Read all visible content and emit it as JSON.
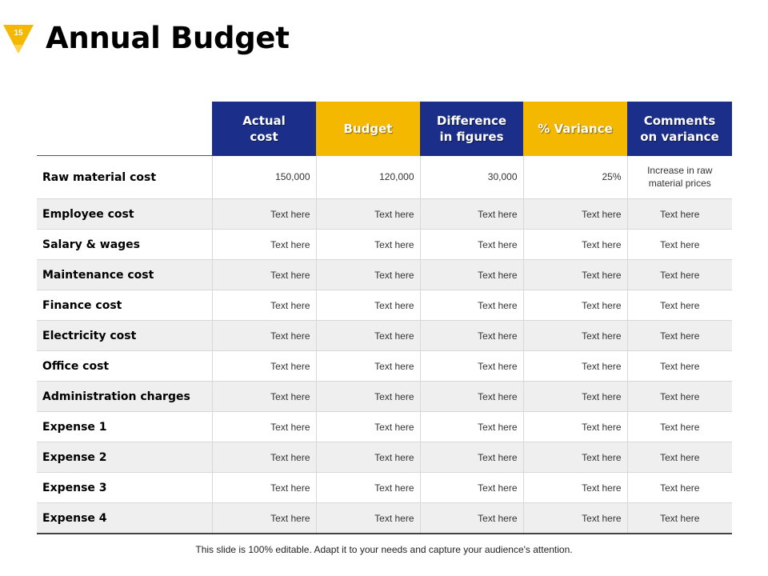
{
  "slide": {
    "number": "15",
    "title": "Annual Budget",
    "footer": "This slide is 100% editable. Adapt it to your needs and capture your audience's attention.",
    "colors": {
      "header_blue": "#1b2f8a",
      "header_gold": "#f5b800",
      "badge_gold": "#f5b800"
    }
  },
  "table": {
    "headers": [
      "Actual\ncost",
      "Budget",
      "Difference\nin figures",
      "% Variance",
      "Comments\non variance"
    ],
    "rows": [
      {
        "label": "Raw material cost",
        "cells": [
          "150,000",
          "120,000",
          "30,000",
          "25%",
          "Increase in raw\nmaterial prices"
        ]
      },
      {
        "label": "Employee cost",
        "cells": [
          "Text here",
          "Text here",
          "Text here",
          "Text here",
          "Text here"
        ]
      },
      {
        "label": "Salary & wages",
        "cells": [
          "Text here",
          "Text here",
          "Text here",
          "Text here",
          "Text here"
        ]
      },
      {
        "label": "Maintenance cost",
        "cells": [
          "Text here",
          "Text here",
          "Text here",
          "Text here",
          "Text here"
        ]
      },
      {
        "label": "Finance cost",
        "cells": [
          "Text here",
          "Text here",
          "Text here",
          "Text here",
          "Text here"
        ]
      },
      {
        "label": "Electricity cost",
        "cells": [
          "Text here",
          "Text here",
          "Text here",
          "Text here",
          "Text here"
        ]
      },
      {
        "label": "Office cost",
        "cells": [
          "Text here",
          "Text here",
          "Text here",
          "Text here",
          "Text here"
        ]
      },
      {
        "label": "Administration charges",
        "cells": [
          "Text here",
          "Text here",
          "Text here",
          "Text here",
          "Text here"
        ]
      },
      {
        "label": "Expense 1",
        "cells": [
          "Text here",
          "Text here",
          "Text here",
          "Text here",
          "Text here"
        ]
      },
      {
        "label": "Expense 2",
        "cells": [
          "Text here",
          "Text here",
          "Text here",
          "Text here",
          "Text here"
        ]
      },
      {
        "label": "Expense 3",
        "cells": [
          "Text here",
          "Text here",
          "Text here",
          "Text here",
          "Text here"
        ]
      },
      {
        "label": "Expense 4",
        "cells": [
          "Text here",
          "Text here",
          "Text here",
          "Text here",
          "Text here"
        ]
      }
    ]
  }
}
